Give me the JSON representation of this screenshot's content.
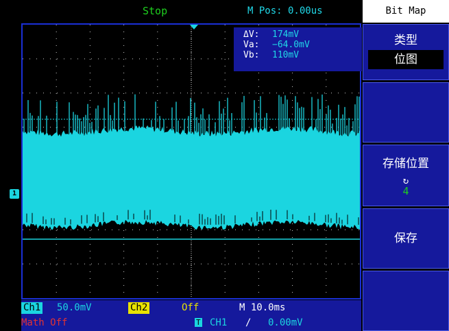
{
  "header": {
    "status": "Stop",
    "mpos": "M Pos: 0.00us"
  },
  "measurements": {
    "delta_label": "ΔV:",
    "delta_value": "174mV",
    "va_label": "Va:",
    "va_value": "−64.0mV",
    "vb_label": "Vb:",
    "vb_value": "110mV"
  },
  "channel_marker": "1",
  "menu": {
    "title": "Bit  Map",
    "type_label": "类型",
    "type_value": "位图",
    "location_label": "存储位置",
    "location_cycle_icon": "cycle-icon",
    "location_value": "4",
    "save_label": "保存"
  },
  "bottom": {
    "ch1_label": "Ch1",
    "ch1_scale": "50.0mV",
    "ch2_label": "Ch2",
    "ch2_state": "Off",
    "timebase": "M 10.0ms",
    "math": "Math  Off",
    "trigger_badge": "T",
    "trigger_source": "CH1",
    "trigger_slope": "/",
    "trigger_level": "0.00mV"
  },
  "colors": {
    "trace": "#1bd5e0",
    "grid_frame": "#1a2fd6",
    "menu_bg": "#15199c",
    "status_green": "#1ecf1e",
    "ch2_yellow": "#e8e200",
    "math_red": "#e23232"
  }
}
